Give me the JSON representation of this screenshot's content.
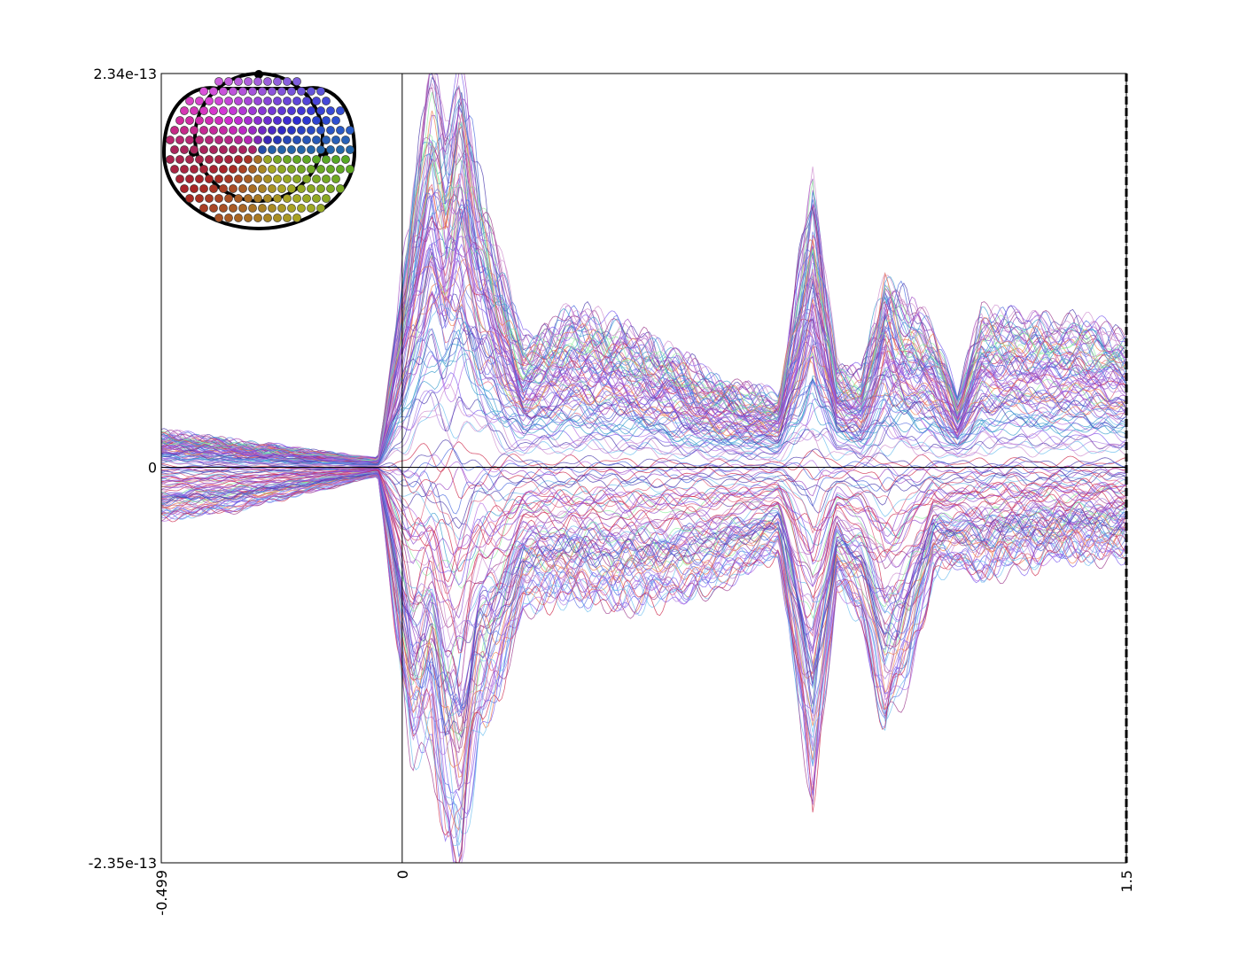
{
  "chart_data": {
    "type": "line",
    "title": "",
    "xlabel": "",
    "ylabel": "",
    "xlim": [
      -0.499,
      1.5
    ],
    "ylim": [
      -2.35e-13,
      2.34e-13
    ],
    "x_tick_labels": [
      "-0.499",
      "0",
      "1.5"
    ],
    "y_tick_labels": [
      "2.34e-13",
      "0",
      "-2.35e-13"
    ],
    "zero_line": true,
    "onset_marker": 0,
    "end_marker": 1.5,
    "grid": false,
    "legend": "topographic sensor layout, top-left",
    "n_channels": 306,
    "envelope": {
      "x": [
        -0.499,
        -0.35,
        -0.2,
        -0.05,
        0.02,
        0.06,
        0.09,
        0.12,
        0.16,
        0.2,
        0.25,
        0.35,
        0.5,
        0.65,
        0.78,
        0.85,
        0.9,
        0.95,
        1.0,
        1.05,
        1.1,
        1.15,
        1.2,
        1.3,
        1.4,
        1.5
      ],
      "upper": [
        2e-14,
        1.5e-14,
        1e-14,
        5e-15,
        1.5e-13,
        2.3e-13,
        1.9e-13,
        2.3e-13,
        1.6e-13,
        1.2e-13,
        7e-14,
        9e-14,
        7.5e-14,
        5e-14,
        4e-14,
        1.6e-13,
        6e-14,
        5e-14,
        1.1e-13,
        9e-14,
        8e-14,
        4e-14,
        9e-14,
        8.5e-14,
        8.5e-14,
        7.5e-14
      ],
      "lower": [
        -3e-14,
        -2.5e-14,
        -1.5e-14,
        -5e-15,
        -1.7e-13,
        -1.5e-13,
        -2.1e-13,
        -2.35e-13,
        -1.5e-13,
        -1.3e-13,
        -8e-14,
        -7.5e-14,
        -8e-14,
        -7e-14,
        -5e-14,
        -1.9e-13,
        -7e-14,
        -9e-14,
        -1.5e-13,
        -1.2e-13,
        -6e-14,
        -6e-14,
        -6e-14,
        -5.5e-14,
        -5e-14,
        -5e-14
      ]
    },
    "series_colors": [
      "#4466dd",
      "#5a6fe0",
      "#8844cc",
      "#9a3fc0",
      "#b066e0",
      "#cc88cc",
      "#dd5577",
      "#cc2244",
      "#3399cc",
      "#66bbee",
      "#ee7744",
      "#88ee99",
      "#993388",
      "#4433aa",
      "#aa77dd",
      "#7755ee"
    ]
  }
}
